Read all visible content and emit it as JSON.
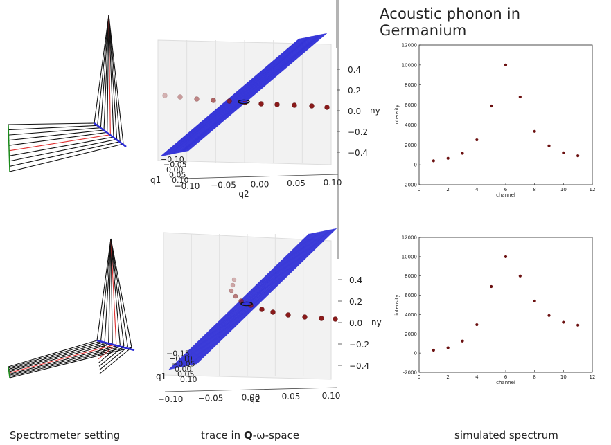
{
  "title": "Acoustic phonon in Germanium",
  "captions": {
    "left": "Spectrometer setting",
    "middle_pre": "trace in ",
    "middle_bold": "Q",
    "middle_post": "-ω-space",
    "right": "simulated spectrum"
  },
  "panels_3d": [
    {
      "q2_ticks": [
        "−0.10",
        "−0.05",
        "0.00",
        "0.05",
        "0.10"
      ],
      "q2_label": "q2",
      "q1_ticks": [
        "−0.10",
        "−0.05",
        "0.00",
        "0.05",
        "0.10"
      ],
      "q1_label": "q1",
      "ny_ticks": [
        "0.4",
        "0.2",
        "0.0",
        "−0.2",
        "−0.4"
      ],
      "ny_label": "ny"
    },
    {
      "q2_ticks": [
        "−0.10",
        "−0.05",
        "0.00",
        "0.05",
        "0.10"
      ],
      "q2_label": "q2",
      "q1_ticks": [
        "−0.15",
        "−0.10",
        "−0.05",
        "0.00",
        "0.05",
        "0.10"
      ],
      "q1_label": "q1",
      "ny_ticks": [
        "0.4",
        "0.2",
        "0.0",
        "−0.2",
        "−0.4"
      ],
      "ny_label": "ny"
    }
  ],
  "chart_data": [
    {
      "type": "scatter",
      "xlabel": "channel",
      "ylabel": "intensity",
      "xlim": [
        0,
        12
      ],
      "ylim": [
        -2000,
        12000
      ],
      "x_ticks": [
        0,
        2,
        4,
        6,
        8,
        10,
        12
      ],
      "y_ticks": [
        -2000,
        0,
        2000,
        4000,
        6000,
        8000,
        10000,
        12000
      ],
      "x": [
        1,
        2,
        3,
        4,
        5,
        6,
        7,
        8,
        9,
        10,
        11
      ],
      "y": [
        400,
        650,
        1150,
        2500,
        5900,
        10000,
        6800,
        3350,
        1900,
        1200,
        900
      ],
      "marker_color": "#6b1010"
    },
    {
      "type": "scatter",
      "xlabel": "channel",
      "ylabel": "intensity",
      "xlim": [
        0,
        12
      ],
      "ylim": [
        -2000,
        12000
      ],
      "x_ticks": [
        0,
        2,
        4,
        6,
        8,
        10,
        12
      ],
      "y_ticks": [
        -2000,
        0,
        2000,
        4000,
        6000,
        8000,
        10000,
        12000
      ],
      "x": [
        1,
        2,
        3,
        4,
        5,
        6,
        7,
        8,
        9,
        10,
        11
      ],
      "y": [
        300,
        550,
        1250,
        2950,
        6900,
        10000,
        8000,
        5400,
        3900,
        3200,
        2900
      ],
      "marker_color": "#6b1010"
    }
  ],
  "colors": {
    "plane_blue": "#2b2bd6",
    "beam_black": "#111111",
    "beam_red": "#e03030",
    "beam_blue": "#2b2bd6",
    "detector_green": "#1a8a1a",
    "trace_marker": "#8b1a1a"
  }
}
